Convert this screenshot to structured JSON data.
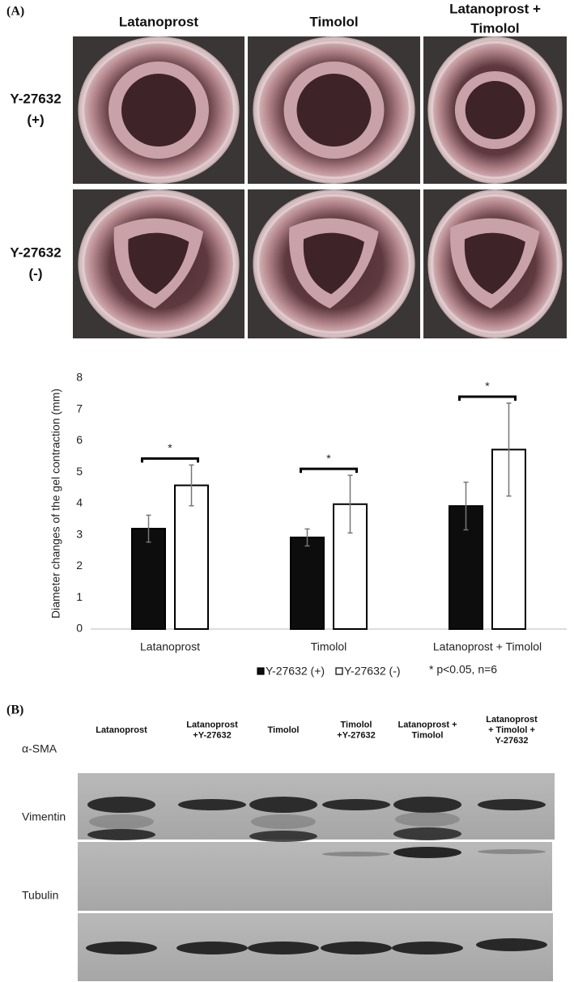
{
  "panel_a": {
    "label": "(A)",
    "columns": [
      [
        "Latanoprost"
      ],
      [
        "Timolol"
      ],
      [
        "Latanoprost +",
        "Timolol"
      ]
    ],
    "rows": [
      [
        "Y-27632",
        "(+)"
      ],
      [
        "Y-27632",
        "(-)"
      ]
    ]
  },
  "chart_data": {
    "type": "bar",
    "y_label": "Diameter changes of the gel contraction (mm)",
    "categories": [
      "Latanoprost",
      "Timolol",
      "Latanoprost + Timolol"
    ],
    "series": [
      {
        "name": "Y-27632 (+)",
        "color": "#0d0d0d",
        "values": [
          3.2,
          2.92,
          3.92
        ],
        "errors": [
          0.43,
          0.27,
          0.76
        ]
      },
      {
        "name": "Y-27632 (-)",
        "color": "#ffffff",
        "values": [
          4.58,
          3.98,
          5.72
        ],
        "errors": [
          0.65,
          0.92,
          1.48
        ]
      }
    ],
    "ylim": [
      0,
      8
    ],
    "yticks": [
      0,
      1,
      2,
      3,
      4,
      5,
      6,
      7,
      8
    ],
    "grid": false,
    "legend": "bottom",
    "annotations": [
      "*",
      "*",
      "*"
    ],
    "note": "* p<0.05, n=6"
  },
  "panel_b": {
    "label": "(B)",
    "lanes": [
      [
        "Latanoprost"
      ],
      [
        "Latanoprost",
        "+Y-27632"
      ],
      [
        "Timolol"
      ],
      [
        "Timolol",
        "+Y-27632"
      ],
      [
        "Latanoprost +",
        "Timolol"
      ],
      [
        "Latanoprost",
        "+ Timolol +",
        "Y-27632"
      ]
    ],
    "blots": [
      "α-SMA",
      "Vimentin",
      "Tubulin"
    ]
  }
}
